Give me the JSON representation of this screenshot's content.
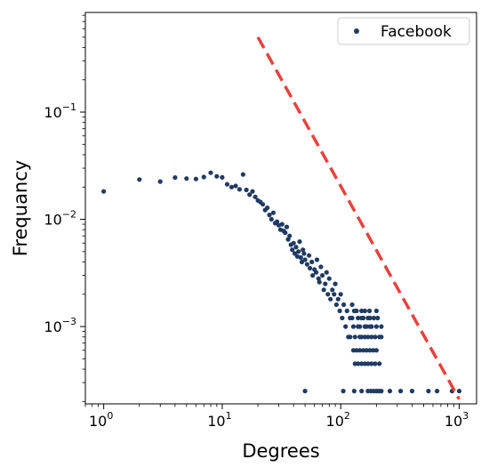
{
  "chart_data": {
    "type": "scatter",
    "xlabel": "Degrees",
    "ylabel": "Frequancy",
    "x_scale": "log",
    "y_scale": "log",
    "xlim": [
      0.7,
      1400
    ],
    "ylim": [
      0.00019,
      0.85
    ],
    "grid": false,
    "legend_position": "top-right",
    "x_ticks": [
      {
        "value": 1,
        "base": "10",
        "exp": "0"
      },
      {
        "value": 10,
        "base": "10",
        "exp": "1"
      },
      {
        "value": 100,
        "base": "10",
        "exp": "2"
      },
      {
        "value": 1000,
        "base": "10",
        "exp": "3"
      }
    ],
    "y_ticks": [
      {
        "value": 0.001,
        "base": "10",
        "exp": "−3"
      },
      {
        "value": 0.01,
        "base": "10",
        "exp": "−2"
      },
      {
        "value": 0.1,
        "base": "10",
        "exp": "−1"
      }
    ],
    "series": [
      {
        "name": "Facebook",
        "color": "#1f3b63",
        "points": [
          [
            1,
            0.0182
          ],
          [
            2,
            0.0235
          ],
          [
            3,
            0.0225
          ],
          [
            4,
            0.0245
          ],
          [
            5,
            0.024
          ],
          [
            6,
            0.0238
          ],
          [
            7,
            0.0248
          ],
          [
            8,
            0.0272
          ],
          [
            9,
            0.0252
          ],
          [
            10,
            0.0246
          ],
          [
            11,
            0.0212
          ],
          [
            12,
            0.02
          ],
          [
            13,
            0.0205
          ],
          [
            14,
            0.019
          ],
          [
            15,
            0.0262
          ],
          [
            16,
            0.0188
          ],
          [
            17,
            0.017
          ],
          [
            18,
            0.0182
          ],
          [
            19,
            0.0162
          ],
          [
            20,
            0.015
          ],
          [
            21,
            0.0145
          ],
          [
            22,
            0.0138
          ],
          [
            23,
            0.0122
          ],
          [
            24,
            0.0128
          ],
          [
            25,
            0.011
          ],
          [
            26,
            0.01
          ],
          [
            27,
            0.0115
          ],
          [
            28,
            0.0092
          ],
          [
            29,
            0.0095
          ],
          [
            30,
            0.0088
          ],
          [
            31,
            0.008
          ],
          [
            32,
            0.009
          ],
          [
            33,
            0.0078
          ],
          [
            34,
            0.0075
          ],
          [
            35,
            0.0085
          ],
          [
            36,
            0.0065
          ],
          [
            37,
            0.007
          ],
          [
            38,
            0.0058
          ],
          [
            39,
            0.0052
          ],
          [
            40,
            0.006
          ],
          [
            41,
            0.0048
          ],
          [
            42,
            0.0055
          ],
          [
            43,
            0.0045
          ],
          [
            44,
            0.005
          ],
          [
            45,
            0.0062
          ],
          [
            46,
            0.0044
          ],
          [
            47,
            0.004
          ],
          [
            48,
            0.0052
          ],
          [
            49,
            0.0048
          ],
          [
            50,
            0.0042
          ],
          [
            52,
            0.0038
          ],
          [
            54,
            0.0046
          ],
          [
            55,
            0.0035
          ],
          [
            57,
            0.004
          ],
          [
            58,
            0.003
          ],
          [
            60,
            0.0034
          ],
          [
            62,
            0.0032
          ],
          [
            63,
            0.0042
          ],
          [
            65,
            0.0028
          ],
          [
            66,
            0.0026
          ],
          [
            68,
            0.0036
          ],
          [
            70,
            0.003
          ],
          [
            72,
            0.0022
          ],
          [
            74,
            0.0025
          ],
          [
            76,
            0.0032
          ],
          [
            78,
            0.002
          ],
          [
            80,
            0.0028
          ],
          [
            82,
            0.0018
          ],
          [
            85,
            0.0022
          ],
          [
            88,
            0.002
          ],
          [
            90,
            0.0025
          ],
          [
            92,
            0.0016
          ],
          [
            95,
            0.0018
          ],
          [
            98,
            0.0014
          ],
          [
            100,
            0.002
          ],
          [
            103,
            0.0012
          ],
          [
            106,
            0.0016
          ],
          [
            110,
            0.001
          ],
          [
            113,
            0.0014
          ],
          [
            116,
            0.0008
          ],
          [
            120,
            0.0012
          ],
          [
            125,
            0.0016
          ],
          [
            128,
            0.001
          ],
          [
            132,
            0.0008
          ],
          [
            136,
            0.0014
          ],
          [
            140,
            0.0012
          ],
          [
            145,
            0.001
          ],
          [
            150,
            0.0008
          ],
          [
            155,
            0.0012
          ],
          [
            160,
            0.0014
          ],
          [
            165,
            0.001
          ],
          [
            170,
            0.0008
          ],
          [
            176,
            0.0012
          ],
          [
            182,
            0.001
          ],
          [
            188,
            0.0006
          ],
          [
            195,
            0.0008
          ],
          [
            200,
            0.001
          ],
          [
            205,
            0.0012
          ],
          [
            212,
            0.0008
          ],
          [
            220,
            0.001
          ],
          [
            128,
            0.0006
          ],
          [
            136,
            0.0006
          ],
          [
            145,
            0.0006
          ],
          [
            155,
            0.0006
          ],
          [
            165,
            0.0006
          ],
          [
            176,
            0.0006
          ],
          [
            200,
            0.0006
          ],
          [
            132,
            0.00045
          ],
          [
            140,
            0.00045
          ],
          [
            150,
            0.00045
          ],
          [
            160,
            0.00045
          ],
          [
            170,
            0.00045
          ],
          [
            182,
            0.00045
          ],
          [
            195,
            0.00045
          ],
          [
            212,
            0.00045
          ],
          [
            120,
            0.0008
          ],
          [
            145,
            0.0008
          ],
          [
            160,
            0.0008
          ],
          [
            182,
            0.0008
          ],
          [
            220,
            0.0008
          ],
          [
            140,
            0.001
          ],
          [
            160,
            0.001
          ],
          [
            176,
            0.001
          ],
          [
            150,
            0.0012
          ],
          [
            170,
            0.0012
          ],
          [
            190,
            0.0012
          ],
          [
            125,
            0.0012
          ],
          [
            130,
            0.0014
          ],
          [
            150,
            0.0014
          ],
          [
            175,
            0.0014
          ],
          [
            200,
            0.0014
          ],
          [
            50,
            0.00025
          ],
          [
            105,
            0.00025
          ],
          [
            130,
            0.00025
          ],
          [
            150,
            0.00025
          ],
          [
            170,
            0.00025
          ],
          [
            180,
            0.00025
          ],
          [
            190,
            0.00025
          ],
          [
            200,
            0.00025
          ],
          [
            210,
            0.00025
          ],
          [
            220,
            0.00025
          ],
          [
            260,
            0.00025
          ],
          [
            320,
            0.00025
          ],
          [
            400,
            0.00025
          ],
          [
            550,
            0.00025
          ],
          [
            650,
            0.00025
          ],
          [
            870,
            0.00025
          ],
          [
            1000,
            0.00025
          ]
        ]
      },
      {
        "name": "",
        "style": "dashed-line",
        "color": "#e8423c",
        "points": [
          [
            20,
            0.5
          ],
          [
            1000,
            0.00021
          ]
        ]
      }
    ]
  }
}
